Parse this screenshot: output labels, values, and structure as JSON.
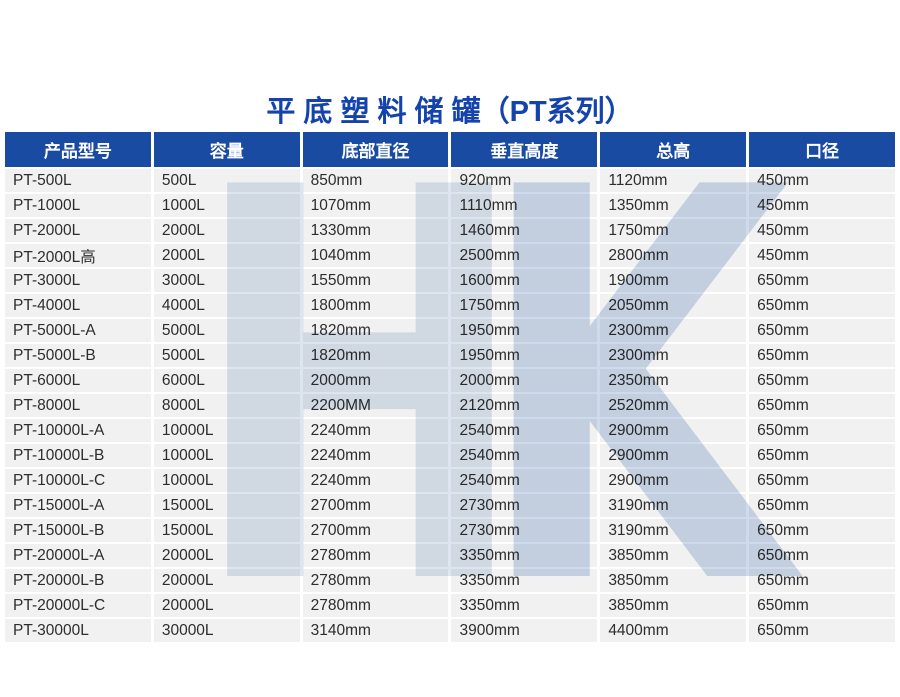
{
  "title": "平 底 塑 料 储 罐（PT系列）",
  "colors": {
    "title_blue": "#1444ab",
    "header_bg": "#1a4ba3",
    "header_text": "#ffffff",
    "row_bg": "#f0f1f0",
    "row_text": "#2d2d2d",
    "watermark_light": "#dde5f1",
    "watermark_dark": "#cfdaec"
  },
  "watermark": {
    "letter1": "H",
    "letter2": "K"
  },
  "table": {
    "headers": [
      "产品型号",
      "容量",
      "底部直径",
      "垂直高度",
      "总高",
      "口径"
    ],
    "rows": [
      [
        "PT-500L",
        "500L",
        "850mm",
        "920mm",
        "1120mm",
        "450mm"
      ],
      [
        "PT-1000L",
        "1000L",
        "1070mm",
        "1110mm",
        "1350mm",
        "450mm"
      ],
      [
        "PT-2000L",
        "2000L",
        "1330mm",
        "1460mm",
        "1750mm",
        "450mm"
      ],
      [
        "PT-2000L高",
        "2000L",
        "1040mm",
        "2500mm",
        "2800mm",
        "450mm"
      ],
      [
        "PT-3000L",
        "3000L",
        "1550mm",
        "1600mm",
        "1900mm",
        "650mm"
      ],
      [
        "PT-4000L",
        "4000L",
        "1800mm",
        "1750mm",
        "2050mm",
        "650mm"
      ],
      [
        "PT-5000L-A",
        "5000L",
        "1820mm",
        "1950mm",
        "2300mm",
        "650mm"
      ],
      [
        "PT-5000L-B",
        "5000L",
        "1820mm",
        "1950mm",
        "2300mm",
        "650mm"
      ],
      [
        "PT-6000L",
        "6000L",
        "2000mm",
        "2000mm",
        "2350mm",
        "650mm"
      ],
      [
        "PT-8000L",
        "8000L",
        "2200MM",
        "2120mm",
        "2520mm",
        "650mm"
      ],
      [
        "PT-10000L-A",
        "10000L",
        "2240mm",
        "2540mm",
        "2900mm",
        "650mm"
      ],
      [
        "PT-10000L-B",
        "10000L",
        "2240mm",
        "2540mm",
        "2900mm",
        "650mm"
      ],
      [
        "PT-10000L-C",
        "10000L",
        "2240mm",
        "2540mm",
        "2900mm",
        "650mm"
      ],
      [
        "PT-15000L-A",
        "15000L",
        "2700mm",
        "2730mm",
        "3190mm",
        "650mm"
      ],
      [
        "PT-15000L-B",
        "15000L",
        "2700mm",
        "2730mm",
        "3190mm",
        "650mm"
      ],
      [
        "PT-20000L-A",
        "20000L",
        "2780mm",
        "3350mm",
        "3850mm",
        "650mm"
      ],
      [
        "PT-20000L-B",
        "20000L",
        "2780mm",
        "3350mm",
        "3850mm",
        "650mm"
      ],
      [
        "PT-20000L-C",
        "20000L",
        "2780mm",
        "3350mm",
        "3850mm",
        "650mm"
      ],
      [
        "PT-30000L",
        "30000L",
        "3140mm",
        "3900mm",
        "4400mm",
        "650mm"
      ]
    ]
  }
}
